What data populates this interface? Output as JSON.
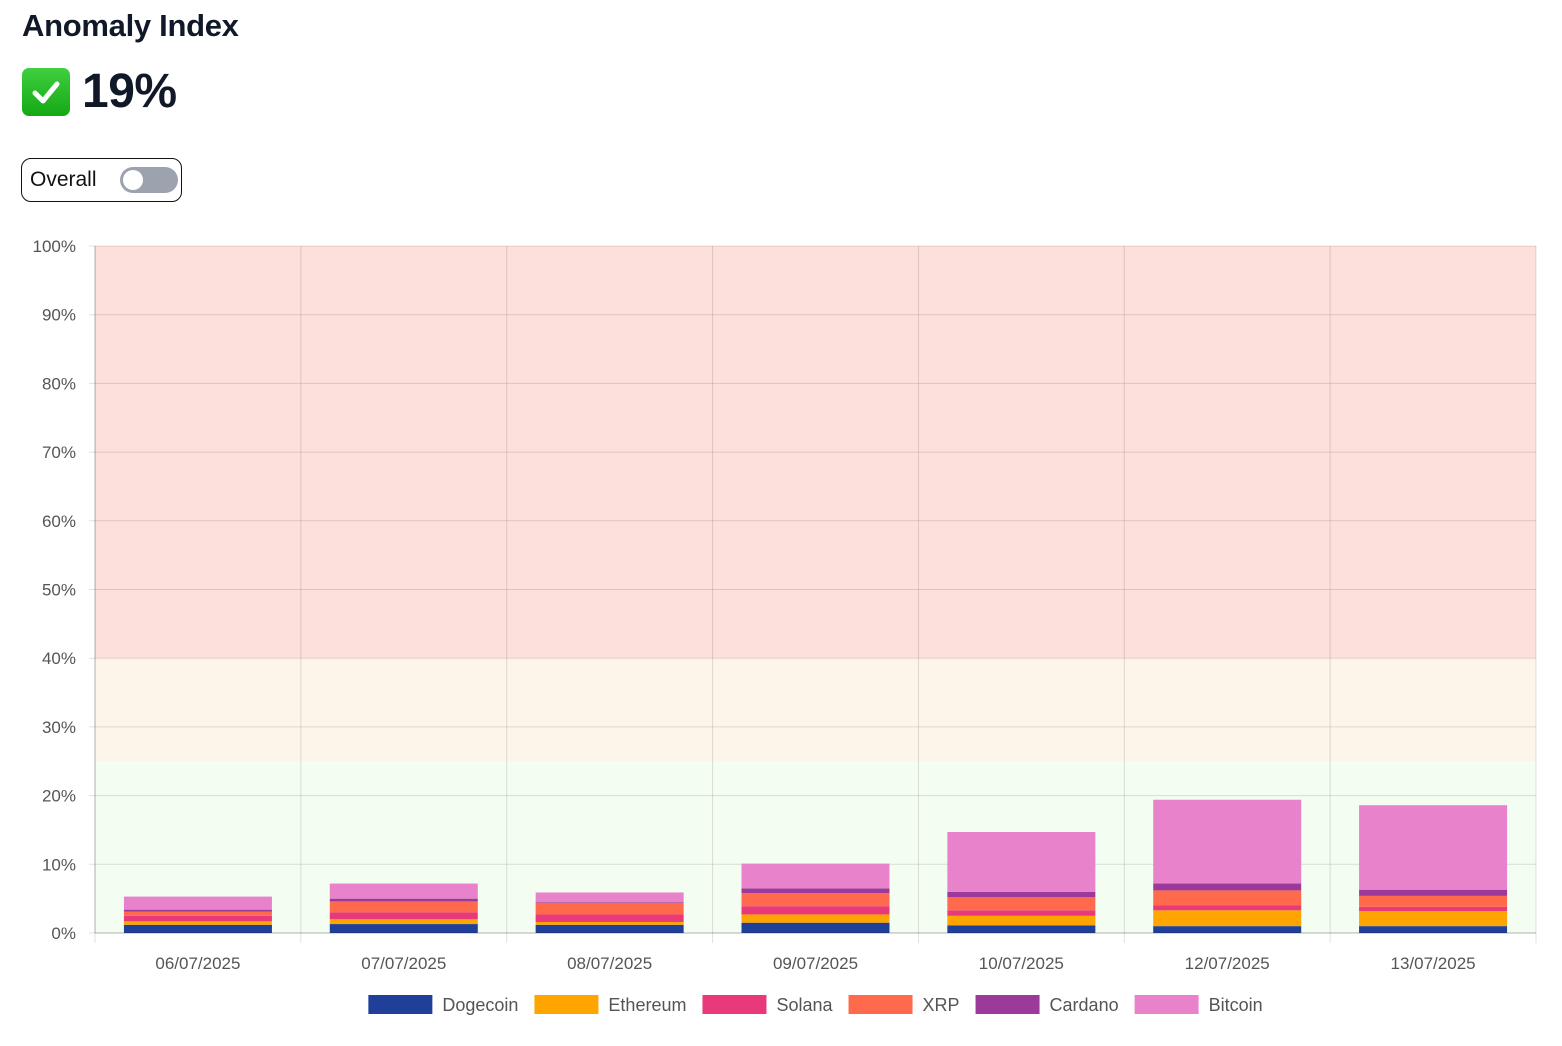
{
  "header": {
    "title": "Anomaly Index",
    "score": "19%",
    "status_icon": "check-mark-icon"
  },
  "toggle": {
    "label": "Overall",
    "checked": false
  },
  "colors": {
    "danger_zone": "#fddfdb",
    "warning_zone": "#fdf5e9",
    "safe_zone": "#f3fdf1"
  },
  "chart_data": {
    "type": "bar",
    "stacked": true,
    "categories": [
      "06/07/2025",
      "07/07/2025",
      "08/07/2025",
      "09/07/2025",
      "10/07/2025",
      "12/07/2025",
      "13/07/2025"
    ],
    "ylim": [
      0,
      100
    ],
    "yticks": [
      "0%",
      "10%",
      "20%",
      "30%",
      "40%",
      "50%",
      "60%",
      "70%",
      "80%",
      "90%",
      "100%"
    ],
    "grid": true,
    "legend_position": "bottom",
    "bands": [
      {
        "from": 0,
        "to": 25,
        "color": "#f3fdf1"
      },
      {
        "from": 25,
        "to": 40,
        "color": "#fdf5e9"
      },
      {
        "from": 40,
        "to": 100,
        "color": "#fddfdb"
      }
    ],
    "series": [
      {
        "name": "Dogecoin",
        "color": "#1f3f99",
        "values": [
          1.2,
          1.3,
          1.2,
          1.5,
          1.1,
          1.0,
          1.0
        ]
      },
      {
        "name": "Ethereum",
        "color": "#ffa500",
        "values": [
          0.5,
          0.7,
          0.4,
          1.2,
          1.4,
          2.3,
          2.2
        ]
      },
      {
        "name": "Solana",
        "color": "#e8397a",
        "values": [
          0.8,
          1.0,
          1.1,
          1.2,
          0.8,
          0.7,
          0.6
        ]
      },
      {
        "name": "XRP",
        "color": "#ff6a4d",
        "values": [
          0.6,
          1.6,
          1.7,
          1.9,
          1.9,
          2.2,
          1.6
        ]
      },
      {
        "name": "Cardano",
        "color": "#9b3a9b",
        "values": [
          0.3,
          0.4,
          0.1,
          0.7,
          0.8,
          1.0,
          0.9
        ]
      },
      {
        "name": "Bitcoin",
        "color": "#e883cb",
        "values": [
          1.9,
          2.2,
          1.4,
          3.6,
          8.7,
          12.2,
          12.3
        ]
      }
    ]
  }
}
